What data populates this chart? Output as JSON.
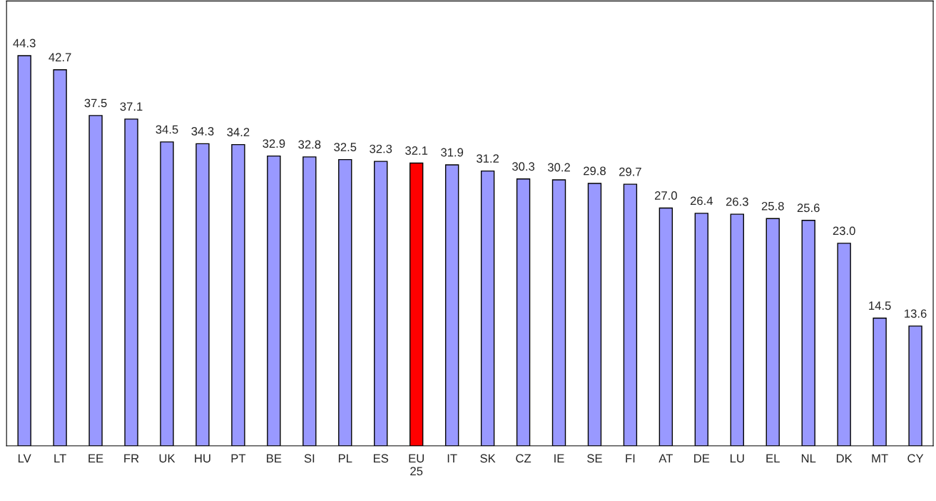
{
  "chart_data": {
    "type": "bar",
    "categories": [
      "LV",
      "LT",
      "EE",
      "FR",
      "UK",
      "HU",
      "PT",
      "BE",
      "SI",
      "PL",
      "ES",
      "EU\n25",
      "IT",
      "SK",
      "CZ",
      "IE",
      "SE",
      "FI",
      "AT",
      "DE",
      "LU",
      "EL",
      "NL",
      "DK",
      "MT",
      "CY"
    ],
    "values": [
      44.3,
      42.7,
      37.5,
      37.1,
      34.5,
      34.3,
      34.2,
      32.9,
      32.8,
      32.5,
      32.3,
      32.1,
      31.9,
      31.2,
      30.3,
      30.2,
      29.8,
      29.7,
      27.0,
      26.4,
      26.3,
      25.8,
      25.6,
      23.0,
      14.5,
      13.6
    ],
    "colors": [
      "#9999ff",
      "#9999ff",
      "#9999ff",
      "#9999ff",
      "#9999ff",
      "#9999ff",
      "#9999ff",
      "#9999ff",
      "#9999ff",
      "#9999ff",
      "#9999ff",
      "#ff0000",
      "#9999ff",
      "#9999ff",
      "#9999ff",
      "#9999ff",
      "#9999ff",
      "#9999ff",
      "#9999ff",
      "#9999ff",
      "#9999ff",
      "#9999ff",
      "#9999ff",
      "#9999ff",
      "#9999ff",
      "#9999ff"
    ],
    "value_labels": [
      "44.3",
      "42.7",
      "37.5",
      "37.1",
      "34.5",
      "34.3",
      "34.2",
      "32.9",
      "32.8",
      "32.5",
      "32.3",
      "32.1",
      "31.9",
      "31.2",
      "30.3",
      "30.2",
      "29.8",
      "29.7",
      "27.0",
      "26.4",
      "26.3",
      "25.8",
      "25.6",
      "23.0",
      "14.5",
      "13.6"
    ],
    "grid": false,
    "legend": false
  }
}
